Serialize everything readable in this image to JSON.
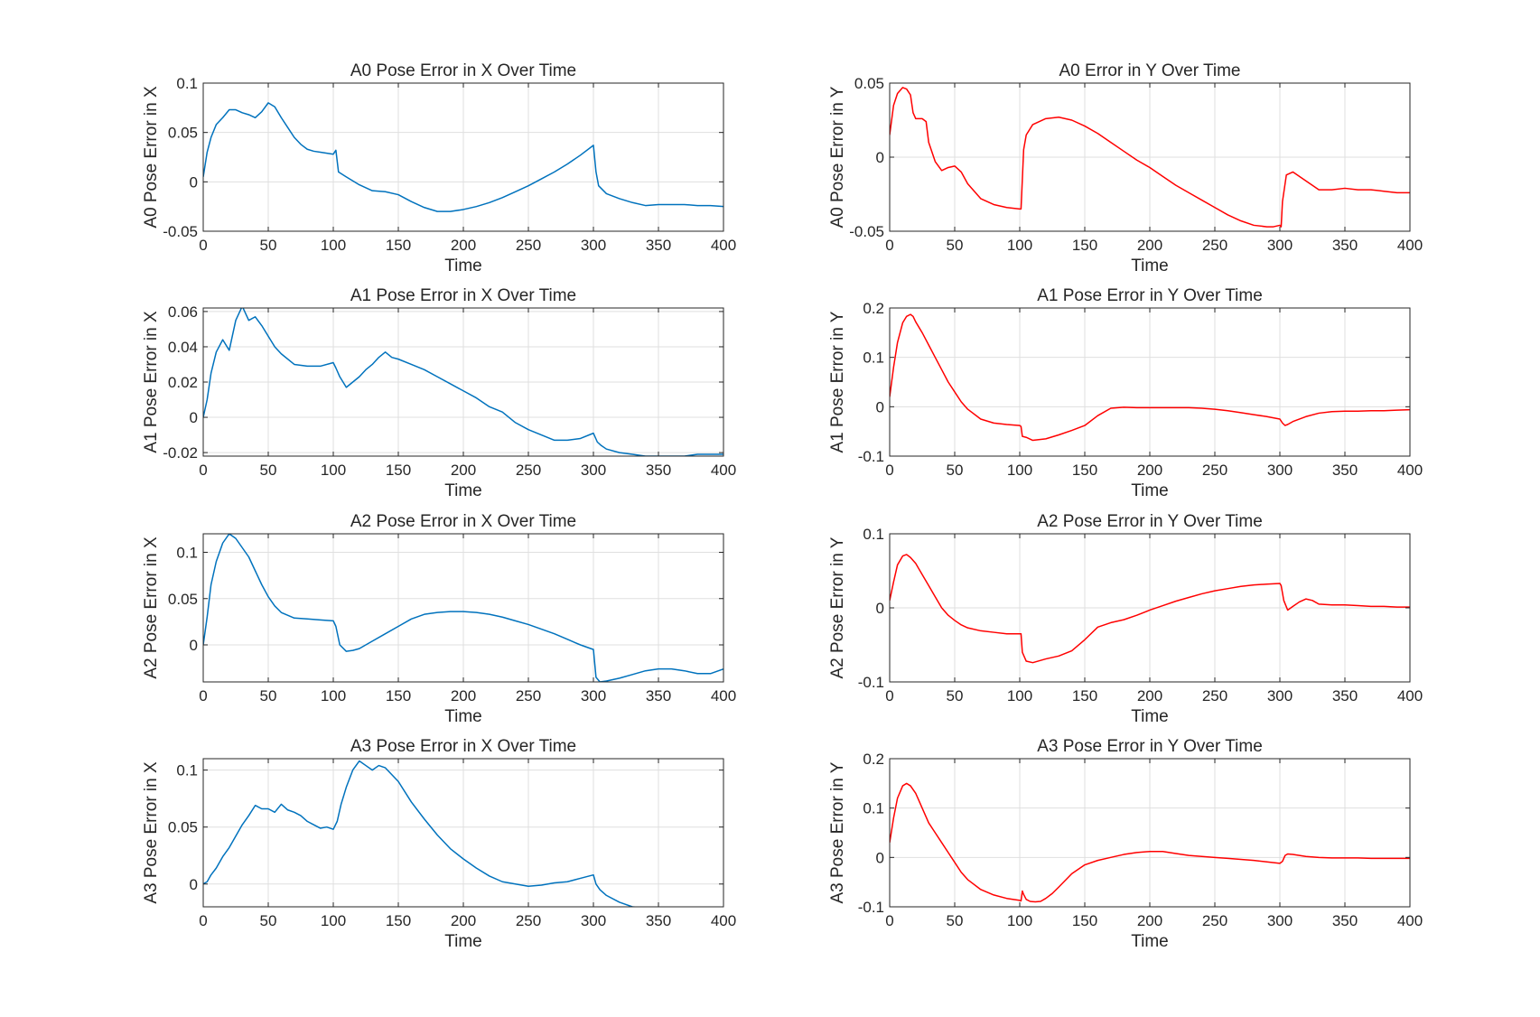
{
  "colors": {
    "x_series": "#0072BD",
    "y_series": "#FF0000",
    "grid": "#dfdfdf",
    "axes": "#262626"
  },
  "chart_data": [
    {
      "type": "line",
      "title": "A0 Pose Error in X Over Time",
      "xlabel": "Time",
      "ylabel": "A0 Pose Error in X",
      "xlim": [
        0,
        400
      ],
      "ylim": [
        -0.05,
        0.1
      ],
      "xticks": [
        0,
        50,
        100,
        150,
        200,
        250,
        300,
        350,
        400
      ],
      "yticks": [
        -0.05,
        0,
        0.05,
        0.1
      ],
      "ytick_labels": [
        "-0.05",
        "0",
        "0.05",
        "0.1"
      ],
      "grid": true,
      "color": "#0072BD",
      "x": [
        0,
        3,
        6,
        10,
        15,
        20,
        25,
        30,
        35,
        40,
        45,
        50,
        55,
        60,
        65,
        70,
        75,
        80,
        85,
        90,
        95,
        100,
        102,
        104,
        110,
        120,
        130,
        140,
        150,
        160,
        170,
        180,
        190,
        200,
        210,
        220,
        230,
        240,
        250,
        260,
        270,
        280,
        290,
        300,
        302,
        304,
        310,
        320,
        330,
        340,
        350,
        360,
        370,
        380,
        390,
        400
      ],
      "y": [
        0.005,
        0.03,
        0.045,
        0.058,
        0.065,
        0.073,
        0.073,
        0.07,
        0.068,
        0.065,
        0.071,
        0.08,
        0.076,
        0.065,
        0.055,
        0.045,
        0.038,
        0.033,
        0.031,
        0.03,
        0.029,
        0.028,
        0.032,
        0.01,
        0.005,
        -0.003,
        -0.009,
        -0.01,
        -0.013,
        -0.02,
        -0.026,
        -0.03,
        -0.03,
        -0.028,
        -0.025,
        -0.021,
        -0.016,
        -0.01,
        -0.004,
        0.003,
        0.01,
        0.018,
        0.027,
        0.037,
        0.01,
        -0.004,
        -0.012,
        -0.017,
        -0.021,
        -0.024,
        -0.023,
        -0.023,
        -0.023,
        -0.024,
        -0.024,
        -0.025
      ]
    },
    {
      "type": "line",
      "title": "A0 Error in Y Over Time",
      "xlabel": "Time",
      "ylabel": "A0 Pose Error in Y",
      "xlim": [
        0,
        400
      ],
      "ylim": [
        -0.05,
        0.05
      ],
      "xticks": [
        0,
        50,
        100,
        150,
        200,
        250,
        300,
        350,
        400
      ],
      "yticks": [
        -0.05,
        0,
        0.05
      ],
      "ytick_labels": [
        "-0.05",
        "0",
        "0.05"
      ],
      "grid": true,
      "color": "#FF0000",
      "x": [
        0,
        3,
        6,
        10,
        13,
        16,
        18,
        20,
        25,
        28,
        30,
        35,
        40,
        45,
        50,
        55,
        60,
        70,
        80,
        90,
        100,
        101,
        102,
        103,
        105,
        110,
        120,
        130,
        140,
        150,
        160,
        170,
        180,
        190,
        200,
        210,
        220,
        230,
        240,
        250,
        260,
        270,
        280,
        290,
        295,
        300,
        301,
        302,
        305,
        310,
        320,
        330,
        340,
        350,
        360,
        370,
        380,
        390,
        400
      ],
      "y": [
        0.015,
        0.035,
        0.043,
        0.047,
        0.046,
        0.042,
        0.03,
        0.026,
        0.026,
        0.024,
        0.01,
        -0.003,
        -0.009,
        -0.007,
        -0.006,
        -0.01,
        -0.018,
        -0.028,
        -0.032,
        -0.034,
        -0.035,
        -0.035,
        -0.015,
        0.005,
        0.015,
        0.022,
        0.026,
        0.027,
        0.025,
        0.021,
        0.016,
        0.01,
        0.004,
        -0.002,
        -0.007,
        -0.013,
        -0.019,
        -0.024,
        -0.029,
        -0.034,
        -0.039,
        -0.043,
        -0.046,
        -0.047,
        -0.047,
        -0.046,
        -0.047,
        -0.03,
        -0.012,
        -0.01,
        -0.016,
        -0.022,
        -0.022,
        -0.021,
        -0.022,
        -0.022,
        -0.023,
        -0.024,
        -0.024
      ]
    },
    {
      "type": "line",
      "title": "A1 Pose Error in X Over Time",
      "xlabel": "Time",
      "ylabel": "A1 Pose Error in X",
      "xlim": [
        0,
        400
      ],
      "ylim": [
        -0.022,
        0.062
      ],
      "xticks": [
        0,
        50,
        100,
        150,
        200,
        250,
        300,
        350,
        400
      ],
      "yticks": [
        -0.02,
        0,
        0.02,
        0.04,
        0.06
      ],
      "ytick_labels": [
        "-0.02",
        "0",
        "0.02",
        "0.04",
        "0.06"
      ],
      "grid": true,
      "color": "#0072BD",
      "x": [
        0,
        3,
        6,
        10,
        15,
        20,
        25,
        30,
        35,
        40,
        45,
        50,
        55,
        60,
        70,
        80,
        90,
        100,
        102,
        105,
        110,
        115,
        120,
        125,
        130,
        135,
        140,
        145,
        150,
        160,
        170,
        180,
        190,
        200,
        210,
        220,
        230,
        240,
        250,
        260,
        270,
        280,
        290,
        300,
        303,
        306,
        310,
        320,
        330,
        340,
        350,
        360,
        370,
        380,
        390,
        400
      ],
      "y": [
        0.0,
        0.01,
        0.025,
        0.037,
        0.044,
        0.038,
        0.055,
        0.063,
        0.055,
        0.057,
        0.052,
        0.046,
        0.04,
        0.036,
        0.03,
        0.029,
        0.029,
        0.031,
        0.028,
        0.023,
        0.017,
        0.02,
        0.023,
        0.027,
        0.03,
        0.034,
        0.037,
        0.034,
        0.033,
        0.03,
        0.027,
        0.023,
        0.019,
        0.015,
        0.011,
        0.006,
        0.003,
        -0.003,
        -0.007,
        -0.01,
        -0.013,
        -0.013,
        -0.012,
        -0.009,
        -0.014,
        -0.016,
        -0.018,
        -0.02,
        -0.021,
        -0.022,
        -0.022,
        -0.022,
        -0.022,
        -0.021,
        -0.021,
        -0.021
      ]
    },
    {
      "type": "line",
      "title": "A1 Pose Error in Y Over Time",
      "xlabel": "Time",
      "ylabel": "A1 Pose Error in Y",
      "xlim": [
        0,
        400
      ],
      "ylim": [
        -0.1,
        0.2
      ],
      "xticks": [
        0,
        50,
        100,
        150,
        200,
        250,
        300,
        350,
        400
      ],
      "yticks": [
        -0.1,
        0,
        0.1,
        0.2
      ],
      "ytick_labels": [
        "-0.1",
        "0",
        "0.1",
        "0.2"
      ],
      "grid": true,
      "color": "#FF0000",
      "x": [
        0,
        3,
        6,
        10,
        13,
        16,
        18,
        20,
        25,
        30,
        35,
        40,
        45,
        50,
        55,
        60,
        70,
        80,
        90,
        100,
        101,
        102,
        105,
        110,
        120,
        130,
        140,
        150,
        160,
        170,
        180,
        190,
        200,
        210,
        220,
        230,
        240,
        250,
        260,
        270,
        280,
        290,
        300,
        302,
        304,
        306,
        310,
        320,
        330,
        340,
        350,
        360,
        370,
        380,
        390,
        400
      ],
      "y": [
        0.02,
        0.08,
        0.13,
        0.17,
        0.183,
        0.187,
        0.183,
        0.172,
        0.15,
        0.125,
        0.1,
        0.075,
        0.05,
        0.03,
        0.01,
        -0.005,
        -0.025,
        -0.033,
        -0.036,
        -0.038,
        -0.04,
        -0.06,
        -0.062,
        -0.068,
        -0.065,
        -0.057,
        -0.048,
        -0.038,
        -0.018,
        -0.003,
        -0.001,
        -0.002,
        -0.002,
        -0.002,
        -0.002,
        -0.002,
        -0.003,
        -0.005,
        -0.008,
        -0.012,
        -0.016,
        -0.02,
        -0.025,
        -0.033,
        -0.038,
        -0.036,
        -0.03,
        -0.02,
        -0.013,
        -0.01,
        -0.009,
        -0.009,
        -0.008,
        -0.008,
        -0.007,
        -0.006
      ]
    },
    {
      "type": "line",
      "title": "A2 Pose Error in X Over Time",
      "xlabel": "Time",
      "ylabel": "A2 Pose Error in X",
      "xlim": [
        0,
        400
      ],
      "ylim": [
        -0.04,
        0.12
      ],
      "xticks": [
        0,
        50,
        100,
        150,
        200,
        250,
        300,
        350,
        400
      ],
      "yticks": [
        0,
        0.05,
        0.1
      ],
      "ytick_labels": [
        "0",
        "0.05",
        "0.1"
      ],
      "grid": true,
      "color": "#0072BD",
      "x": [
        0,
        3,
        6,
        10,
        15,
        20,
        25,
        30,
        35,
        40,
        45,
        50,
        55,
        60,
        70,
        80,
        90,
        100,
        102,
        105,
        110,
        115,
        120,
        130,
        140,
        150,
        160,
        170,
        180,
        190,
        200,
        210,
        220,
        230,
        240,
        250,
        260,
        270,
        280,
        290,
        300,
        301,
        302,
        305,
        310,
        320,
        330,
        340,
        350,
        360,
        370,
        380,
        390,
        400
      ],
      "y": [
        0.0,
        0.03,
        0.065,
        0.09,
        0.11,
        0.12,
        0.115,
        0.105,
        0.095,
        0.08,
        0.065,
        0.052,
        0.042,
        0.035,
        0.029,
        0.028,
        0.027,
        0.026,
        0.02,
        0.0,
        -0.007,
        -0.006,
        -0.004,
        0.004,
        0.012,
        0.02,
        0.028,
        0.033,
        0.035,
        0.036,
        0.036,
        0.035,
        0.033,
        0.03,
        0.026,
        0.022,
        0.017,
        0.012,
        0.006,
        0.0,
        -0.005,
        -0.02,
        -0.035,
        -0.04,
        -0.039,
        -0.036,
        -0.032,
        -0.028,
        -0.026,
        -0.026,
        -0.028,
        -0.031,
        -0.031,
        -0.026
      ]
    },
    {
      "type": "line",
      "title": "A2 Pose Error in Y Over Time",
      "xlabel": "Time",
      "ylabel": "A2 Pose Error in Y",
      "xlim": [
        0,
        400
      ],
      "ylim": [
        -0.1,
        0.1
      ],
      "xticks": [
        0,
        50,
        100,
        150,
        200,
        250,
        300,
        350,
        400
      ],
      "yticks": [
        -0.1,
        0,
        0.1
      ],
      "ytick_labels": [
        "-0.1",
        "0",
        "0.1"
      ],
      "grid": true,
      "color": "#FF0000",
      "x": [
        0,
        3,
        6,
        10,
        13,
        16,
        20,
        25,
        30,
        35,
        40,
        45,
        50,
        55,
        60,
        70,
        80,
        90,
        100,
        101,
        102,
        105,
        110,
        120,
        130,
        140,
        150,
        160,
        170,
        180,
        190,
        200,
        210,
        220,
        230,
        240,
        250,
        260,
        270,
        280,
        290,
        300,
        301,
        303,
        306,
        310,
        315,
        320,
        325,
        330,
        340,
        350,
        360,
        370,
        380,
        390,
        400
      ],
      "y": [
        0.01,
        0.035,
        0.058,
        0.07,
        0.072,
        0.068,
        0.06,
        0.045,
        0.03,
        0.015,
        0.0,
        -0.01,
        -0.017,
        -0.023,
        -0.027,
        -0.031,
        -0.033,
        -0.035,
        -0.035,
        -0.035,
        -0.06,
        -0.072,
        -0.074,
        -0.069,
        -0.065,
        -0.058,
        -0.043,
        -0.026,
        -0.02,
        -0.016,
        -0.01,
        -0.003,
        0.003,
        0.009,
        0.014,
        0.019,
        0.023,
        0.026,
        0.029,
        0.031,
        0.032,
        0.033,
        0.03,
        0.01,
        -0.003,
        0.002,
        0.008,
        0.012,
        0.01,
        0.005,
        0.004,
        0.004,
        0.003,
        0.002,
        0.002,
        0.001,
        0.001
      ]
    },
    {
      "type": "line",
      "title": "A3 Pose Error in X Over Time",
      "xlabel": "Time",
      "ylabel": "A3 Pose Error in X",
      "xlim": [
        0,
        400
      ],
      "ylim": [
        -0.02,
        0.11
      ],
      "xticks": [
        0,
        50,
        100,
        150,
        200,
        250,
        300,
        350,
        400
      ],
      "yticks": [
        0,
        0.05,
        0.1
      ],
      "ytick_labels": [
        "0",
        "0.05",
        "0.1"
      ],
      "grid": true,
      "color": "#0072BD",
      "x": [
        0,
        3,
        6,
        10,
        15,
        20,
        25,
        30,
        35,
        40,
        45,
        50,
        55,
        60,
        65,
        70,
        75,
        80,
        85,
        90,
        95,
        100,
        103,
        106,
        110,
        115,
        120,
        125,
        130,
        135,
        140,
        150,
        160,
        170,
        180,
        190,
        200,
        210,
        220,
        230,
        240,
        250,
        260,
        270,
        280,
        290,
        300,
        302,
        305,
        310,
        320,
        330,
        340,
        350,
        360,
        370,
        380,
        390,
        400
      ],
      "y": [
        0.0,
        0.002,
        0.008,
        0.014,
        0.024,
        0.032,
        0.042,
        0.052,
        0.06,
        0.069,
        0.066,
        0.066,
        0.063,
        0.07,
        0.065,
        0.063,
        0.06,
        0.055,
        0.052,
        0.049,
        0.05,
        0.048,
        0.055,
        0.07,
        0.085,
        0.1,
        0.108,
        0.104,
        0.1,
        0.104,
        0.102,
        0.09,
        0.072,
        0.057,
        0.043,
        0.031,
        0.022,
        0.014,
        0.007,
        0.002,
        0.0,
        -0.002,
        -0.001,
        0.001,
        0.002,
        0.005,
        0.008,
        0.0,
        -0.005,
        -0.01,
        -0.016,
        -0.02,
        -0.021,
        -0.021,
        -0.022,
        -0.022,
        -0.022,
        -0.022,
        -0.022
      ]
    },
    {
      "type": "line",
      "title": "A3 Pose Error in Y Over Time",
      "xlabel": "Time",
      "ylabel": "A3 Pose Error in Y",
      "xlim": [
        0,
        400
      ],
      "ylim": [
        -0.1,
        0.2
      ],
      "xticks": [
        0,
        50,
        100,
        150,
        200,
        250,
        300,
        350,
        400
      ],
      "yticks": [
        -0.1,
        0,
        0.1,
        0.2
      ],
      "ytick_labels": [
        "-0.1",
        "0",
        "0.1",
        "0.2"
      ],
      "grid": true,
      "color": "#FF0000",
      "x": [
        0,
        3,
        6,
        10,
        13,
        16,
        20,
        25,
        30,
        35,
        40,
        45,
        50,
        55,
        60,
        70,
        80,
        90,
        100,
        101,
        102,
        103,
        105,
        108,
        112,
        116,
        120,
        125,
        130,
        140,
        150,
        160,
        170,
        180,
        190,
        200,
        210,
        220,
        230,
        240,
        250,
        260,
        270,
        280,
        290,
        300,
        302,
        304,
        306,
        310,
        320,
        330,
        340,
        350,
        360,
        370,
        380,
        390,
        400
      ],
      "y": [
        0.03,
        0.08,
        0.12,
        0.145,
        0.15,
        0.145,
        0.13,
        0.1,
        0.07,
        0.05,
        0.03,
        0.01,
        -0.01,
        -0.03,
        -0.045,
        -0.065,
        -0.076,
        -0.083,
        -0.087,
        -0.088,
        -0.068,
        -0.075,
        -0.085,
        -0.089,
        -0.09,
        -0.089,
        -0.083,
        -0.073,
        -0.06,
        -0.033,
        -0.015,
        -0.006,
        0.0,
        0.006,
        0.01,
        0.012,
        0.012,
        0.008,
        0.004,
        0.002,
        0.0,
        -0.002,
        -0.004,
        -0.006,
        -0.009,
        -0.012,
        -0.008,
        0.004,
        0.007,
        0.006,
        0.002,
        0.0,
        -0.001,
        -0.001,
        -0.001,
        -0.002,
        -0.002,
        -0.002,
        -0.002
      ]
    }
  ]
}
